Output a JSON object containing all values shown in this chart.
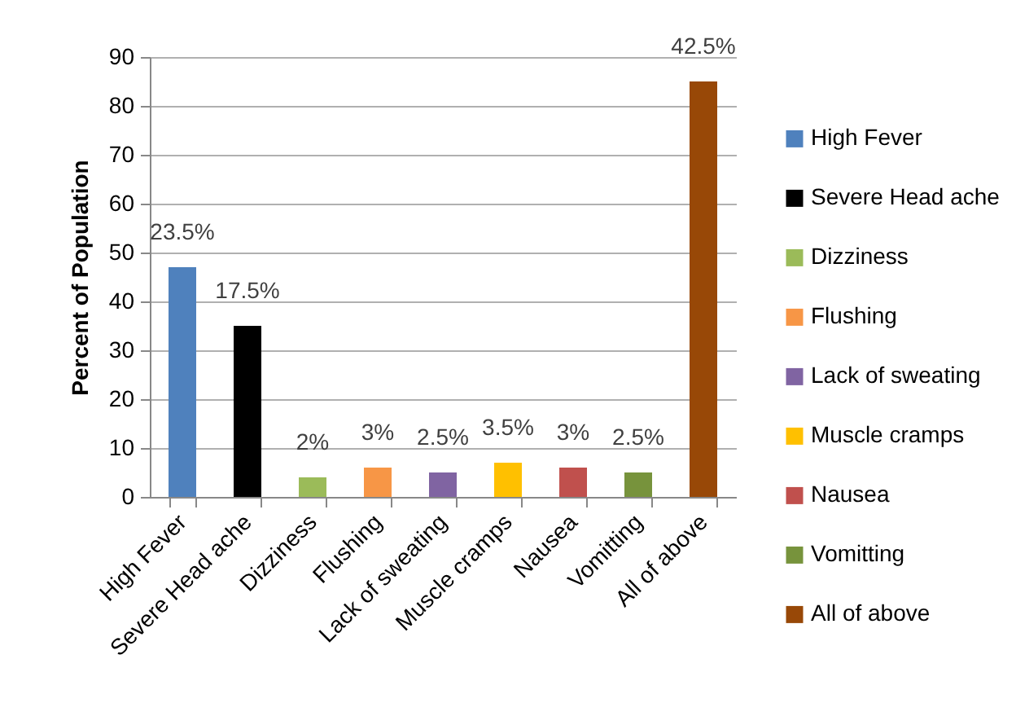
{
  "chart_data": {
    "type": "bar",
    "ylabel": "Percent of Population",
    "categories": [
      "High Fever",
      "Severe Head ache",
      "Dizziness",
      "Flushing",
      "Lack of sweating",
      "Muscle cramps",
      "Nausea",
      "Vomitting",
      "All of above"
    ],
    "series": [
      {
        "name": "High Fever",
        "color": "#4f81bd",
        "values": [
          47,
          null,
          null,
          null,
          null,
          null,
          null,
          null,
          null
        ]
      },
      {
        "name": "Severe Head ache",
        "color": "#000000",
        "values": [
          null,
          35,
          null,
          null,
          null,
          null,
          null,
          null,
          null
        ]
      },
      {
        "name": "Dizziness",
        "color": "#9bbb59",
        "values": [
          null,
          null,
          4,
          null,
          null,
          null,
          null,
          null,
          null
        ]
      },
      {
        "name": "Flushing",
        "color": "#f79646",
        "values": [
          null,
          null,
          null,
          6,
          null,
          null,
          null,
          null,
          null
        ]
      },
      {
        "name": "Lack of sweating",
        "color": "#8064a2",
        "values": [
          null,
          null,
          null,
          null,
          5,
          null,
          null,
          null,
          null
        ]
      },
      {
        "name": "Muscle cramps",
        "color": "#ffc000",
        "values": [
          null,
          null,
          null,
          null,
          null,
          7,
          null,
          null,
          null
        ]
      },
      {
        "name": "Nausea",
        "color": "#c0504d",
        "values": [
          null,
          null,
          null,
          null,
          null,
          null,
          6,
          null,
          null
        ]
      },
      {
        "name": "Vomitting",
        "color": "#77933c",
        "values": [
          null,
          null,
          null,
          null,
          null,
          null,
          null,
          5,
          null
        ]
      },
      {
        "name": "All of above",
        "color": "#984807",
        "values": [
          null,
          null,
          null,
          null,
          null,
          null,
          null,
          null,
          85
        ]
      }
    ],
    "annotations": [
      {
        "text": "23.5%",
        "x": "High Fever",
        "y": 47
      },
      {
        "text": "17.5%",
        "x": "Severe Head ache",
        "y": 35
      },
      {
        "text": "2%",
        "x": "Dizziness",
        "y": 4
      },
      {
        "text": "3%",
        "x": "Flushing",
        "y": 6
      },
      {
        "text": "2.5%",
        "x": "Lack of sweating",
        "y": 5
      },
      {
        "text": "3.5%",
        "x": "Muscle cramps",
        "y": 7
      },
      {
        "text": "3%",
        "x": "Nausea",
        "y": 6
      },
      {
        "text": "2.5%",
        "x": "Vomitting",
        "y": 5
      },
      {
        "text": "42.5%",
        "x": "All of above",
        "y": 85
      }
    ],
    "ylim": [
      0,
      90
    ],
    "yticks": [
      0,
      10,
      20,
      30,
      40,
      50,
      60,
      70,
      80,
      90
    ],
    "grid": "y",
    "legend": "right"
  }
}
